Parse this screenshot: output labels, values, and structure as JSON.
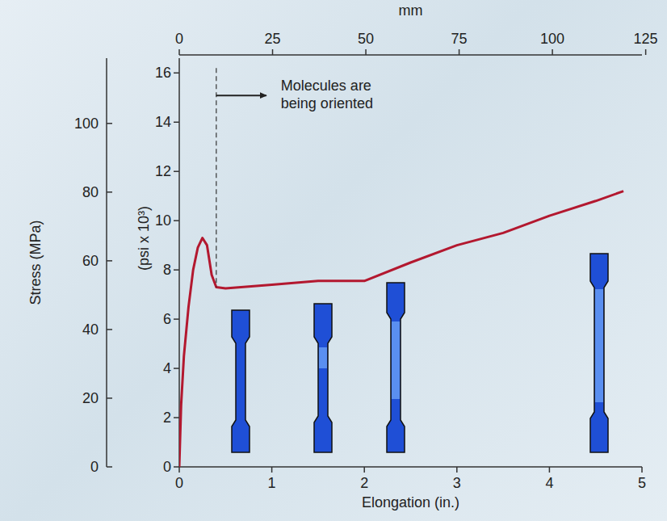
{
  "chart_data": {
    "type": "line",
    "x_label": "Elongation (in.)",
    "x2_label": "mm",
    "y_label": "(psi x 10³)",
    "y2_label": "Stress (MPa)",
    "annotation": {
      "text": "Molecules are being oriented",
      "x": 0.4,
      "y": 16.2
    },
    "x": [
      0,
      0.02,
      0.05,
      0.1,
      0.15,
      0.2,
      0.25,
      0.3,
      0.35,
      0.4,
      0.5,
      1,
      1.5,
      2,
      2.5,
      3,
      3.5,
      4,
      4.5,
      4.8
    ],
    "series": [
      {
        "color": "#b3182f",
        "values": [
          0,
          2.5,
          4.5,
          6.5,
          8.0,
          8.9,
          9.3,
          9.0,
          7.8,
          7.3,
          7.25,
          7.4,
          7.55,
          7.55,
          8.3,
          9.0,
          9.5,
          10.2,
          10.8,
          11.2
        ]
      }
    ],
    "xlim": [
      0,
      5
    ],
    "xticks": [
      0,
      1,
      2,
      3,
      4,
      5
    ],
    "x2lim": [
      0,
      124
    ],
    "x2ticks": [
      0,
      25,
      50,
      75,
      100,
      125
    ],
    "ylim": [
      0,
      16.6
    ],
    "yticks": [
      0,
      2,
      4,
      6,
      8,
      10,
      12,
      14,
      16
    ],
    "y2lim": [
      0,
      119
    ],
    "y2ticks": [
      0,
      20,
      40,
      60,
      80,
      100
    ],
    "grid": false
  }
}
